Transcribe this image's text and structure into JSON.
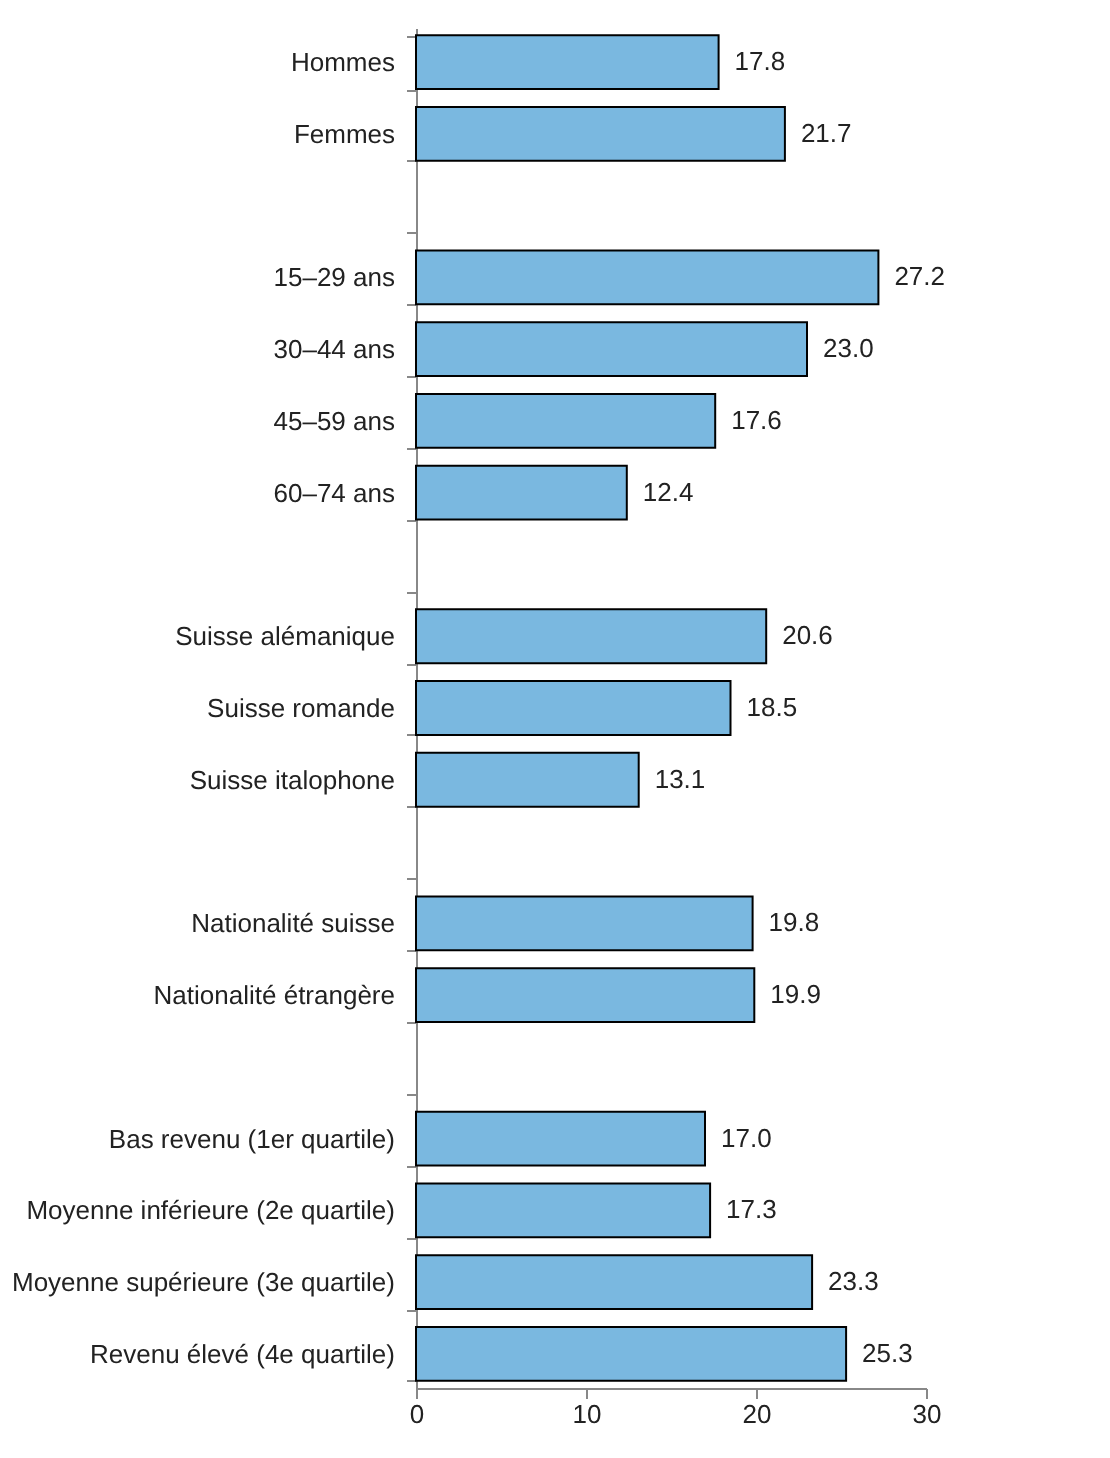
{
  "chart_data": {
    "type": "bar",
    "orientation": "horizontal",
    "categories": [
      "Hommes",
      "Femmes",
      null,
      "15–29 ans",
      "30–44 ans",
      "45–59 ans",
      "60–74 ans",
      null,
      "Suisse alémanique",
      "Suisse romande",
      "Suisse italophone",
      null,
      "Nationalité suisse",
      "Nationalité étrangère",
      null,
      "Bas revenu (1er quartile)",
      "Moyenne inférieure (2e quartile)",
      "Moyenne supérieure (3e quartile)",
      "Revenu élevé (4e quartile)"
    ],
    "values": [
      17.8,
      21.7,
      null,
      27.2,
      23.0,
      17.6,
      12.4,
      null,
      20.6,
      18.5,
      13.1,
      null,
      19.8,
      19.9,
      null,
      17.0,
      17.3,
      23.3,
      25.3
    ],
    "value_labels": [
      "17.8",
      "21.7",
      null,
      "27.2",
      "23.0",
      "17.6",
      "12.4",
      null,
      "20.6",
      "18.5",
      "13.1",
      null,
      "19.8",
      "19.9",
      null,
      "17.0",
      "17.3",
      "23.3",
      "25.3"
    ],
    "color": "#7ab8e0",
    "xlim": [
      0,
      30
    ],
    "xticks": [
      0,
      10,
      20,
      30
    ],
    "grid": false
  }
}
